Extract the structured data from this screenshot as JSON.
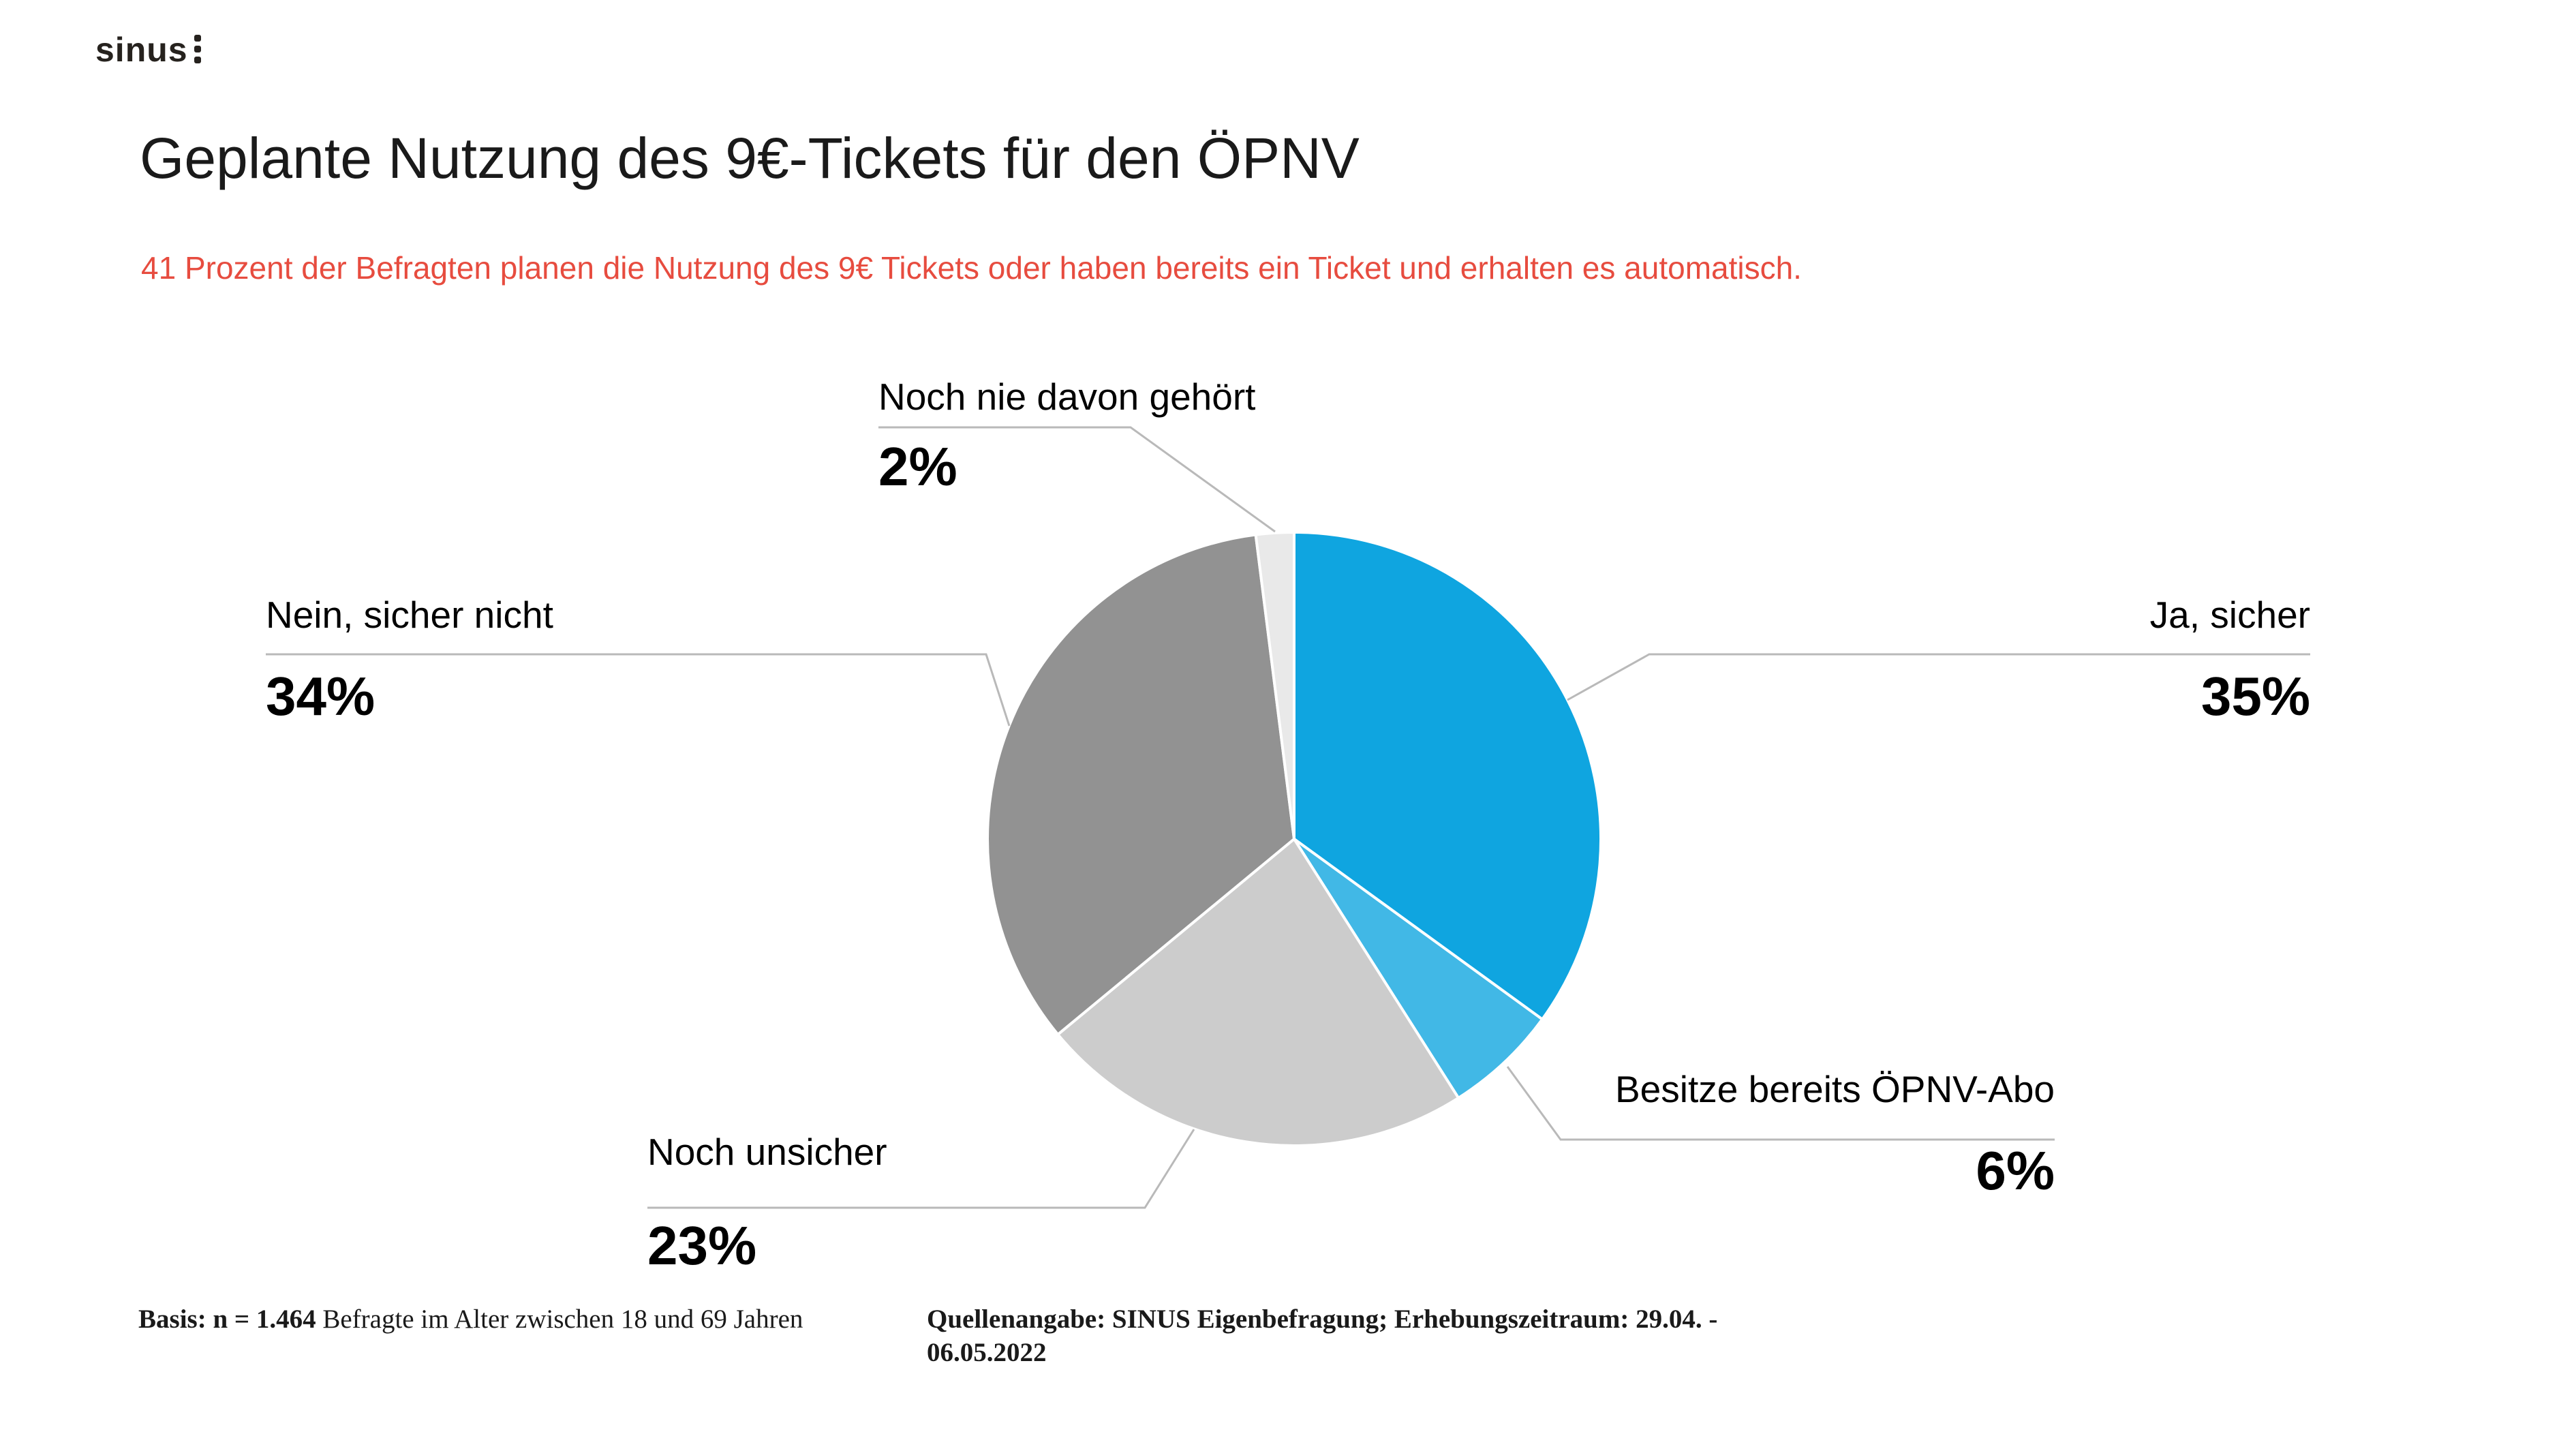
{
  "logo": {
    "text": "sinus"
  },
  "header": {
    "title": "Geplante Nutzung des 9€-Tickets für den ÖPNV",
    "subtitle": "41 Prozent der Befragten planen die Nutzung des 9€ Tickets oder haben bereits ein Ticket und erhalten es automatisch."
  },
  "chart_data": {
    "type": "pie",
    "title": "Geplante Nutzung des 9€-Tickets für den ÖPNV",
    "legend_position": "none",
    "start_angle_deg": 0,
    "direction": "clockwise",
    "units": "percent",
    "slices": [
      {
        "label": "Ja, sicher",
        "value": 35,
        "pct_label": "35%",
        "color": "#0fa5e0"
      },
      {
        "label": "Besitze bereits ÖPNV-Abo",
        "value": 6,
        "pct_label": "6%",
        "color": "#41b8e6"
      },
      {
        "label": "Noch unsicher",
        "value": 23,
        "pct_label": "23%",
        "color": "#cccccc"
      },
      {
        "label": "Nein, sicher nicht",
        "value": 34,
        "pct_label": "34%",
        "color": "#929292"
      },
      {
        "label": "Noch nie davon gehört",
        "value": 2,
        "pct_label": "2%",
        "color": "#e9e9e9"
      }
    ]
  },
  "footer": {
    "basis_bold": "Basis: n = 1.464",
    "basis_rest": " Befragte im Alter zwischen 18 und 69 Jahren",
    "source_line1": "Quellenangabe: SINUS Eigenbefragung; Erhebungszeitraum: 29.04. -",
    "source_line2": "06.05.2022"
  },
  "colors": {
    "accent_blue": "#0fa5e0",
    "light_blue": "#41b8e6",
    "gray_dark": "#929292",
    "gray_light": "#cccccc",
    "gray_pale": "#e9e9e9",
    "subtitle_red": "#e74c3f",
    "leader_line": "#b9b9b9",
    "slice_border": "#ffffff"
  }
}
